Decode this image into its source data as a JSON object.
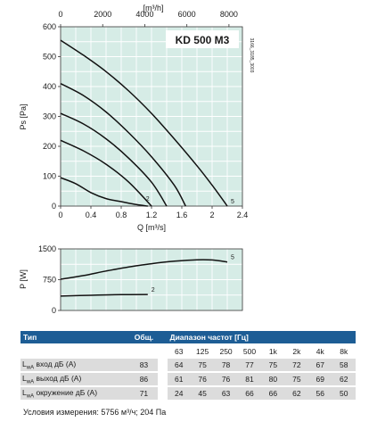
{
  "chart_data": [
    {
      "type": "line",
      "title": "KD 500 M3",
      "side_code": "3166_3185_3003",
      "xlabel_top": "[m³/h]",
      "xlabel": "Q [m³/s]",
      "ylabel": "Ps [Pa]",
      "xlim": [
        0,
        2.4
      ],
      "ylim": [
        0,
        600
      ],
      "x_ticks": [
        "0",
        "0.4",
        "0.8",
        "1.2",
        "1.6",
        "2",
        "2.4"
      ],
      "x_ticks_top": [
        "0",
        "2000",
        "4000",
        "6000",
        "8000"
      ],
      "y_ticks": [
        "0",
        "100",
        "200",
        "300",
        "400",
        "500",
        "600"
      ],
      "grid": true,
      "series": [
        {
          "name": "5",
          "points": [
            [
              0,
              555
            ],
            [
              0.3,
              505
            ],
            [
              0.6,
              450
            ],
            [
              0.9,
              385
            ],
            [
              1.2,
              310
            ],
            [
              1.5,
              225
            ],
            [
              1.8,
              135
            ],
            [
              2.0,
              70
            ],
            [
              2.2,
              0
            ]
          ]
        },
        {
          "name": "",
          "points": [
            [
              0,
              410
            ],
            [
              0.3,
              370
            ],
            [
              0.6,
              315
            ],
            [
              0.9,
              245
            ],
            [
              1.2,
              165
            ],
            [
              1.5,
              70
            ],
            [
              1.65,
              0
            ]
          ]
        },
        {
          "name": "",
          "points": [
            [
              0,
              310
            ],
            [
              0.3,
              275
            ],
            [
              0.6,
              225
            ],
            [
              0.9,
              160
            ],
            [
              1.2,
              80
            ],
            [
              1.4,
              0
            ]
          ]
        },
        {
          "name": "",
          "points": [
            [
              0,
              220
            ],
            [
              0.3,
              185
            ],
            [
              0.6,
              140
            ],
            [
              0.9,
              80
            ],
            [
              1.2,
              0
            ]
          ]
        },
        {
          "name": "2",
          "points": [
            [
              0,
              95
            ],
            [
              0.2,
              75
            ],
            [
              0.4,
              45
            ],
            [
              0.6,
              25
            ],
            [
              0.8,
              15
            ],
            [
              1.0,
              5
            ],
            [
              1.15,
              0
            ]
          ]
        }
      ]
    },
    {
      "type": "line",
      "ylabel": "P [W]",
      "xlim": [
        0,
        2.4
      ],
      "ylim": [
        0,
        1500
      ],
      "y_ticks": [
        "0",
        "750",
        "1500"
      ],
      "grid": true,
      "series": [
        {
          "name": "5",
          "points": [
            [
              0,
              760
            ],
            [
              0.3,
              850
            ],
            [
              0.6,
              960
            ],
            [
              0.9,
              1060
            ],
            [
              1.2,
              1140
            ],
            [
              1.5,
              1200
            ],
            [
              1.8,
              1235
            ],
            [
              2.0,
              1230
            ],
            [
              2.2,
              1180
            ]
          ]
        },
        {
          "name": "2",
          "points": [
            [
              0,
              350
            ],
            [
              0.4,
              370
            ],
            [
              0.8,
              385
            ],
            [
              1.15,
              390
            ]
          ]
        }
      ]
    }
  ],
  "table": {
    "col_type": "Тип",
    "col_total": "Общ.",
    "col_range": "Диапазон частот [Гц]",
    "freqs": [
      "63",
      "125",
      "250",
      "500",
      "1k",
      "2k",
      "4k",
      "8k"
    ],
    "rows": [
      {
        "label_pre": "L",
        "label_sub": "wA",
        "label_post": " вход дБ (А)",
        "total": "83",
        "values": [
          "64",
          "75",
          "78",
          "77",
          "75",
          "72",
          "67",
          "58"
        ]
      },
      {
        "label_pre": "L",
        "label_sub": "wA",
        "label_post": " выход дБ (А)",
        "total": "86",
        "values": [
          "61",
          "76",
          "76",
          "81",
          "80",
          "75",
          "69",
          "62"
        ]
      },
      {
        "label_pre": "L",
        "label_sub": "wA",
        "label_post": " окружение дБ (А)",
        "total": "71",
        "values": [
          "24",
          "45",
          "63",
          "66",
          "66",
          "62",
          "56",
          "50"
        ]
      }
    ]
  },
  "conditions": "Условия измерения: 5756 м³/ч; 204 Па"
}
